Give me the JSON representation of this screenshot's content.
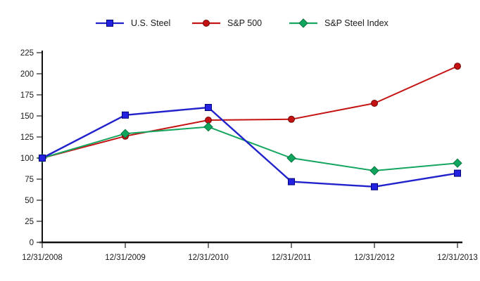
{
  "chart_data": {
    "type": "line",
    "categories": [
      "12/31/2008",
      "12/31/2009",
      "12/31/2010",
      "12/31/2011",
      "12/31/2012",
      "12/31/2013"
    ],
    "series": [
      {
        "name": "U.S. Steel",
        "marker": "square",
        "color": "#2222cc",
        "marker_fill": "#2222e0",
        "marker_edge": "#000078",
        "values": [
          100,
          151,
          160,
          72,
          66,
          82
        ]
      },
      {
        "name": "S&P 500",
        "marker": "circle",
        "color": "#c41414",
        "marker_fill": "#c41212",
        "marker_edge": "#700a0a",
        "values": [
          100,
          126,
          145,
          146,
          165,
          209
        ]
      },
      {
        "name": "S&P Steel Index",
        "marker": "diamond",
        "color": "#14a55f",
        "marker_fill": "#10a65e",
        "marker_edge": "#0b7441",
        "values": [
          100,
          129,
          137,
          100,
          85,
          94
        ]
      }
    ],
    "title": "",
    "xlabel": "",
    "ylabel": "",
    "ylim": [
      0,
      225
    ],
    "ytick_step": 25,
    "grid": false,
    "legend_position": "top",
    "axis_color": "#111111",
    "tick_label_color": "#1a1a1a"
  }
}
